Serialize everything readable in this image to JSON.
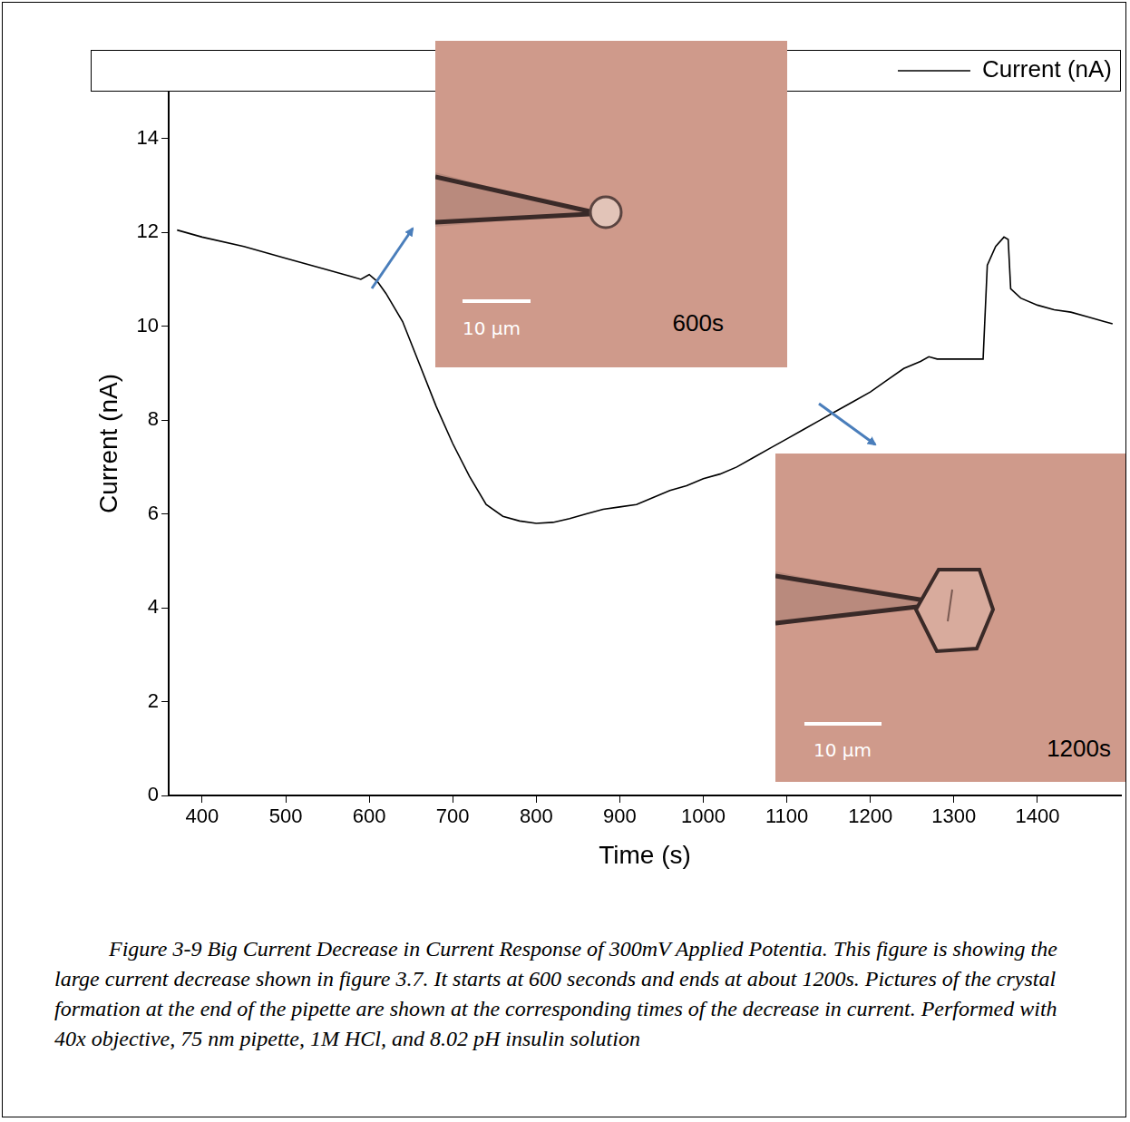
{
  "chart_data": {
    "type": "line",
    "x_label": "Time (s)",
    "y_label": "Current (nA)",
    "x": [
      370,
      400,
      450,
      500,
      550,
      580,
      590,
      600,
      610,
      620,
      640,
      660,
      680,
      700,
      720,
      740,
      760,
      780,
      800,
      820,
      840,
      860,
      880,
      900,
      920,
      940,
      960,
      980,
      1000,
      1020,
      1040,
      1060,
      1080,
      1100,
      1120,
      1140,
      1160,
      1180,
      1200,
      1220,
      1240,
      1260,
      1270,
      1280,
      1300,
      1320,
      1335,
      1340,
      1350,
      1360,
      1365,
      1368,
      1380,
      1400,
      1420,
      1440,
      1460,
      1480,
      1490
    ],
    "series": [
      {
        "name": "Current (nA)",
        "color": "#000000",
        "values": [
          12.05,
          11.9,
          11.7,
          11.45,
          11.2,
          11.05,
          11.0,
          11.1,
          10.95,
          10.7,
          10.1,
          9.2,
          8.3,
          7.5,
          6.8,
          6.2,
          5.95,
          5.85,
          5.8,
          5.82,
          5.9,
          6.0,
          6.1,
          6.15,
          6.2,
          6.35,
          6.5,
          6.6,
          6.75,
          6.85,
          7.0,
          7.2,
          7.4,
          7.6,
          7.8,
          8.0,
          8.2,
          8.4,
          8.6,
          8.85,
          9.1,
          9.25,
          9.35,
          9.3,
          9.3,
          9.3,
          9.3,
          11.3,
          11.7,
          11.9,
          11.85,
          10.8,
          10.6,
          10.45,
          10.35,
          10.3,
          10.2,
          10.1,
          10.05
        ]
      }
    ],
    "xlim": [
      360,
      1500
    ],
    "xticks": [
      400,
      500,
      600,
      700,
      800,
      900,
      1000,
      1100,
      1200,
      1300,
      1400
    ],
    "ylim": [
      0,
      15
    ],
    "yticks": [
      0,
      2,
      4,
      6,
      8,
      10,
      12,
      14
    ],
    "grid": false,
    "legend": "upper right",
    "insets": [
      {
        "label": "600s",
        "scale_bar": "10 μm"
      },
      {
        "label": "1200s",
        "scale_bar": "10 μm"
      }
    ]
  },
  "caption": "Figure 3-9 Big Current Decrease in Current Response of 300mV Applied Potentia. This figure is showing the large current decrease shown in figure 3.7. It starts at 600 seconds and ends at about 1200s. Pictures of the crystal formation at the end of the pipette are shown at the corresponding times of the decrease in current. Performed with 40x objective, 75 nm pipette, 1M HCl, and 8.02 pH insulin solution"
}
